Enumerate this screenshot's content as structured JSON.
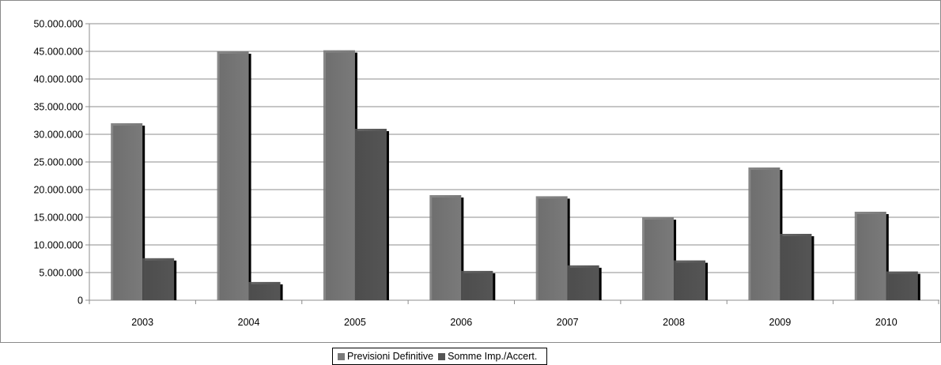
{
  "chart_data": {
    "type": "bar",
    "categories": [
      "2003",
      "2004",
      "2005",
      "2006",
      "2007",
      "2008",
      "2009",
      "2010"
    ],
    "series": [
      {
        "name": "Previsioni Definitive",
        "color": "#7a7a7a",
        "values": [
          32000000,
          45000000,
          45200000,
          19000000,
          18800000,
          15000000,
          24000000,
          16000000
        ]
      },
      {
        "name": "Somme Imp./Accert.",
        "color": "#555555",
        "values": [
          7600000,
          3300000,
          31000000,
          5300000,
          6300000,
          7200000,
          12000000,
          5200000
        ]
      }
    ],
    "yticks": [
      "0",
      "5.000.000",
      "10.000.000",
      "15.000.000",
      "20.000.000",
      "25.000.000",
      "30.000.000",
      "35.000.000",
      "40.000.000",
      "45.000.000",
      "50.000.000"
    ],
    "ylim": [
      0,
      50000000
    ],
    "grid": true,
    "legend_position": "bottom"
  }
}
